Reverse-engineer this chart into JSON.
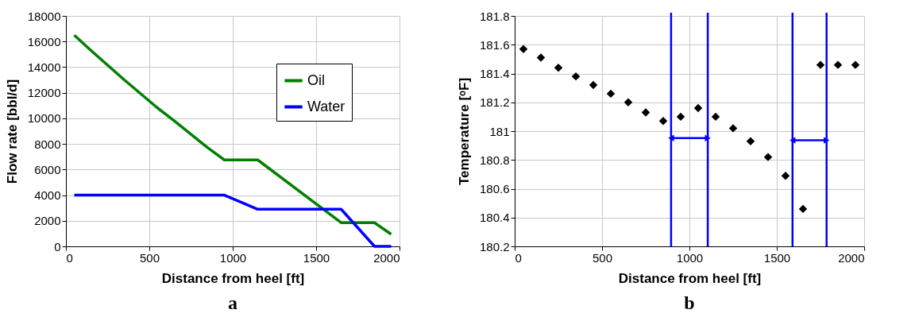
{
  "chart_data": [
    {
      "type": "line",
      "title": "a",
      "xlabel": "Distance from heel [ft]",
      "ylabel": "Flow rate [bbl/d]",
      "xlim": [
        0,
        2000
      ],
      "xticks": [
        0,
        500,
        1000,
        1500,
        2000
      ],
      "ylim": [
        0,
        18000
      ],
      "yticks": [
        0,
        2000,
        4000,
        6000,
        8000,
        10000,
        12000,
        14000,
        16000,
        18000
      ],
      "grid": true,
      "legend": "top right",
      "marker": "none",
      "line_style": "solid",
      "series": [
        {
          "name": "Oil",
          "color": "#008000",
          "x": [
            50,
            150,
            350,
            550,
            650,
            850,
            950,
            1150,
            1650,
            1850,
            1950
          ],
          "values": [
            16500,
            15300,
            13000,
            10800,
            9800,
            7700,
            6750,
            6750,
            1850,
            1850,
            950
          ]
        },
        {
          "name": "Water",
          "color": "#0000ff",
          "x": [
            50,
            950,
            1150,
            1650,
            1850,
            1950
          ],
          "values": [
            4000,
            4000,
            2900,
            2900,
            0,
            0
          ]
        }
      ]
    },
    {
      "type": "scatter",
      "title": "b",
      "xlabel": "Distance from heel [ft]",
      "ylabel": "Temperature [ᵒF]",
      "xlim": [
        0,
        2000
      ],
      "xticks": [
        0,
        500,
        1000,
        1500,
        2000
      ],
      "ylim": [
        180.2,
        181.8
      ],
      "yticks": [
        180.2,
        180.4,
        180.6,
        180.8,
        181,
        181.2,
        181.4,
        181.6,
        181.8
      ],
      "grid": true,
      "legend": false,
      "marker": "diamond",
      "x": [
        50,
        150,
        250,
        350,
        450,
        550,
        650,
        750,
        850,
        950,
        1050,
        1150,
        1250,
        1350,
        1450,
        1550,
        1650,
        1750,
        1850,
        1950
      ],
      "series": [
        {
          "color": "#000000",
          "values": [
            181.57,
            181.51,
            181.44,
            181.38,
            181.32,
            181.26,
            181.2,
            181.13,
            181.07,
            181.1,
            181.16,
            181.1,
            181.02,
            180.93,
            180.82,
            180.69,
            180.46,
            181.46,
            181.46,
            181.46
          ]
        }
      ],
      "ref_lines": [
        {
          "axis": "x",
          "value": 895,
          "color": "#0000ff"
        },
        {
          "axis": "x",
          "value": 1105,
          "color": "#0000ff"
        },
        {
          "axis": "x",
          "value": 1590,
          "color": "#0000ff"
        },
        {
          "axis": "x",
          "value": 1785,
          "color": "#0000ff"
        }
      ]
    }
  ]
}
